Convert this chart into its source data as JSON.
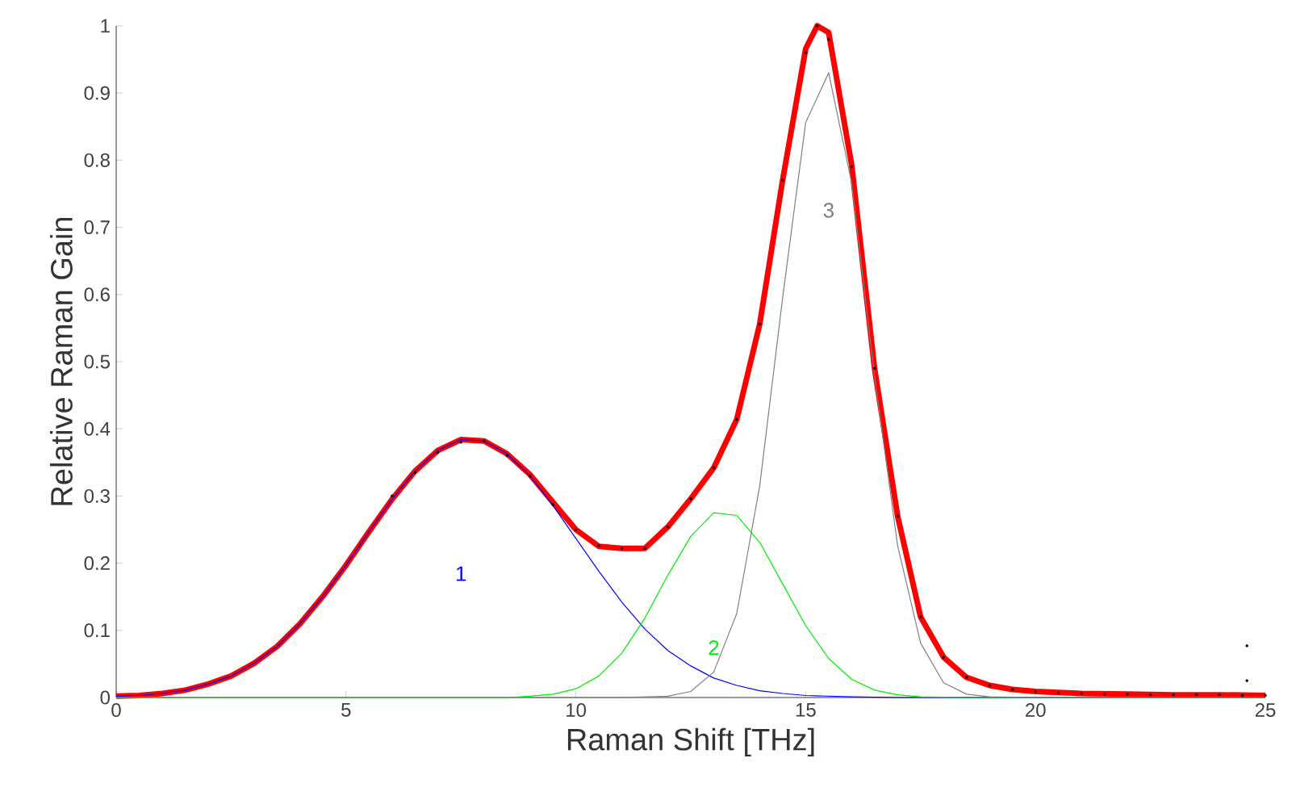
{
  "chart_data": {
    "type": "line",
    "xlabel": "Raman Shift [THz]",
    "ylabel": "Relative Raman Gain",
    "xlim": [
      0,
      25
    ],
    "ylim": [
      0,
      1
    ],
    "xticks": [
      0,
      5,
      10,
      15,
      20,
      25
    ],
    "yticks": [
      0,
      0.1,
      0.2,
      0.3,
      0.4,
      0.5,
      0.6,
      0.7,
      0.8,
      0.9,
      1
    ],
    "grid": false,
    "legend": false,
    "series": [
      {
        "type": "scatter",
        "color": "#000000",
        "x": [
          6,
          6.5,
          7,
          7.5,
          8,
          8.5,
          9,
          9.5,
          10,
          10.5,
          11,
          11.5,
          12,
          12.5,
          13,
          13.5,
          14,
          14.5,
          15,
          15.25,
          15.5,
          16,
          16.5,
          17,
          17.5,
          18,
          18.5,
          19,
          19.5,
          20,
          20.5,
          21,
          21.5,
          22,
          22.5,
          23,
          23.5,
          24,
          24.5,
          24.6,
          24.6,
          25
        ],
        "values": [
          0.3,
          0.335,
          0.365,
          0.38,
          0.382,
          0.36,
          0.33,
          0.287,
          0.25,
          0.226,
          0.222,
          0.222,
          0.254,
          0.296,
          0.342,
          0.414,
          0.556,
          0.77,
          0.96,
          1.0,
          0.98,
          0.79,
          0.49,
          0.27,
          0.12,
          0.06,
          0.03,
          0.018,
          0.012,
          0.009,
          0.007,
          0.006,
          0.005,
          0.005,
          0.004,
          0.004,
          0.004,
          0.004,
          0.003,
          0.077,
          0.025,
          0.003
        ]
      },
      {
        "color": "#ff0000",
        "x": [
          0,
          0.5,
          1,
          1.5,
          2,
          2.5,
          3,
          3.5,
          4,
          4.5,
          5,
          5.5,
          6,
          6.5,
          7,
          7.5,
          8,
          8.5,
          9,
          9.5,
          10,
          10.5,
          11,
          11.5,
          12,
          12.5,
          13,
          13.5,
          14,
          14.5,
          15,
          15.25,
          15.5,
          16,
          16.5,
          17,
          17.5,
          18,
          18.5,
          19,
          19.5,
          20,
          21,
          22,
          23,
          24,
          25
        ],
        "values": [
          0.002,
          0.003,
          0.006,
          0.011,
          0.02,
          0.032,
          0.051,
          0.076,
          0.11,
          0.151,
          0.197,
          0.247,
          0.295,
          0.337,
          0.368,
          0.384,
          0.382,
          0.363,
          0.332,
          0.291,
          0.25,
          0.225,
          0.222,
          0.222,
          0.254,
          0.296,
          0.342,
          0.414,
          0.556,
          0.771,
          0.966,
          1.0,
          0.99,
          0.793,
          0.489,
          0.27,
          0.12,
          0.06,
          0.03,
          0.018,
          0.012,
          0.009,
          0.006,
          0.005,
          0.004,
          0.004,
          0.003
        ]
      },
      {
        "name": "1",
        "color": "#0000ff",
        "x": [
          0,
          0.5,
          1,
          1.5,
          2,
          2.5,
          3,
          3.5,
          4,
          4.5,
          5,
          5.5,
          6,
          6.5,
          7,
          7.5,
          8,
          8.5,
          9,
          9.5,
          10,
          10.5,
          11,
          11.5,
          12,
          12.5,
          13,
          13.5,
          14,
          14.5,
          15,
          16,
          17,
          25
        ],
        "values": [
          0.002,
          0.003,
          0.006,
          0.011,
          0.02,
          0.032,
          0.051,
          0.076,
          0.11,
          0.151,
          0.197,
          0.247,
          0.295,
          0.337,
          0.368,
          0.384,
          0.382,
          0.363,
          0.33,
          0.286,
          0.237,
          0.188,
          0.142,
          0.102,
          0.07,
          0.047,
          0.029,
          0.018,
          0.01,
          0.006,
          0.003,
          0.001,
          0,
          0
        ]
      },
      {
        "name": "2",
        "color": "#00ee00",
        "x": [
          0,
          8.5,
          9,
          9.5,
          10,
          10.5,
          11,
          11.5,
          12,
          12.5,
          13,
          13.5,
          14,
          14.5,
          15,
          15.5,
          16,
          16.5,
          17,
          17.5,
          18.5,
          25
        ],
        "values": [
          0,
          0,
          0.002,
          0.005,
          0.013,
          0.032,
          0.066,
          0.118,
          0.182,
          0.24,
          0.275,
          0.271,
          0.231,
          0.169,
          0.107,
          0.058,
          0.027,
          0.011,
          0.004,
          0.001,
          0,
          0
        ]
      },
      {
        "name": "3",
        "color": "#808080",
        "x": [
          0,
          11,
          12,
          12.5,
          13,
          13.5,
          14,
          14.5,
          15,
          15.5,
          16,
          16.5,
          17,
          17.5,
          18,
          18.5,
          19,
          20,
          25
        ],
        "values": [
          0,
          0,
          0.002,
          0.009,
          0.038,
          0.125,
          0.315,
          0.596,
          0.856,
          0.93,
          0.766,
          0.478,
          0.226,
          0.081,
          0.022,
          0.005,
          0.001,
          0,
          0
        ]
      }
    ]
  }
}
